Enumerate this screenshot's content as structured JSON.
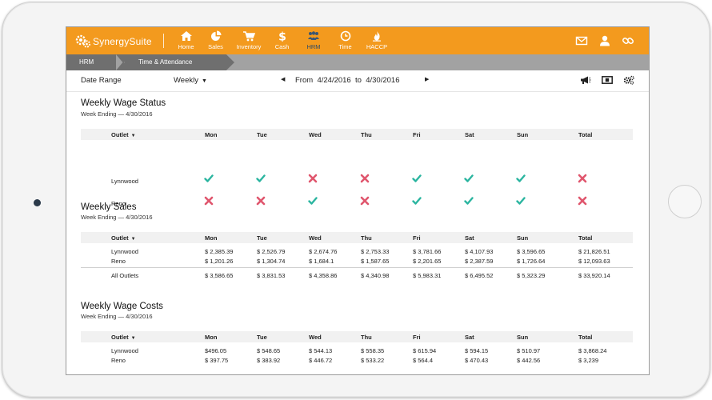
{
  "app": {
    "brand": "SynergySuite"
  },
  "nav": [
    {
      "label": "Home",
      "icon": "home-icon"
    },
    {
      "label": "Sales",
      "icon": "pie-chart-icon"
    },
    {
      "label": "Inventory",
      "icon": "cart-icon"
    },
    {
      "label": "Cash",
      "icon": "dollar-icon"
    },
    {
      "label": "HRM",
      "icon": "people-icon",
      "active": true
    },
    {
      "label": "Time",
      "icon": "clock-icon"
    },
    {
      "label": "HACCP",
      "icon": "flame-icon"
    }
  ],
  "header_icons": [
    "mail-icon",
    "user-icon",
    "link-icon"
  ],
  "breadcrumb": [
    "HRM",
    "Time & Attendance"
  ],
  "filter": {
    "label": "Date Range",
    "period": "Weekly",
    "from_label": "From",
    "from": "4/24/2016",
    "to_label": "to",
    "to": "4/30/2016"
  },
  "toolbar_icons": [
    "megaphone-icon",
    "money-icon",
    "settings-icon"
  ],
  "columns": [
    "Outlet",
    "Mon",
    "Tue",
    "Wed",
    "Thu",
    "Fri",
    "Sat",
    "Sun",
    "Total"
  ],
  "status": {
    "title": "Weekly Wage Status",
    "subtitle": "Week Ending — 4/30/2016",
    "rows": [
      {
        "outlet": "Lynnwood",
        "marks": [
          "check",
          "check",
          "cross",
          "cross",
          "check",
          "check",
          "check",
          "cross"
        ]
      },
      {
        "outlet": "Reno",
        "marks": [
          "cross",
          "cross",
          "check",
          "cross",
          "check",
          "check",
          "check",
          "cross"
        ]
      }
    ]
  },
  "sales": {
    "title": "Weekly Sales",
    "subtitle": "Week Ending — 4/30/2016",
    "rows": [
      {
        "outlet": "Lynnwood",
        "values": [
          "$ 2,385.39",
          "$ 2,526.79",
          "$ 2,674.76",
          "$ 2,753.33",
          "$ 3,781.66",
          "$ 4,107.93",
          "$ 3,596.65",
          "$ 21,826.51"
        ]
      },
      {
        "outlet": "Reno",
        "values": [
          "$ 1,201.26",
          "$ 1,304.74",
          "$ 1,684.1",
          "$ 1,587.65",
          "$ 2,201.65",
          "$ 2,387.59",
          "$ 1,726.64",
          "$ 12,093.63"
        ]
      }
    ],
    "total": {
      "outlet": "All Outlets",
      "values": [
        "$ 3,586.65",
        "$ 3,831.53",
        "$ 4,358.86",
        "$ 4,340.98",
        "$ 5,983.31",
        "$ 6,495.52",
        "$ 5,323.29",
        "$ 33,920.14"
      ]
    }
  },
  "costs": {
    "title": "Weekly Wage Costs",
    "subtitle": "Week Ending — 4/30/2016",
    "rows": [
      {
        "outlet": "Lynnwood",
        "values": [
          "$496.05",
          "$ 548.65",
          "$ 544.13",
          "$ 558.35",
          "$ 615.94",
          "$ 594.15",
          "$ 510.97",
          "$ 3,868.24"
        ]
      },
      {
        "outlet": "Reno",
        "values": [
          "$ 397.75",
          "$ 383.92",
          "$ 446.72",
          "$ 533.22",
          "$ 564.4",
          "$ 470.43",
          "$ 442.56",
          "$ 3,239"
        ]
      }
    ]
  },
  "colors": {
    "brand": "#f39a1e",
    "check": "#2bb5a0",
    "cross": "#e0566d",
    "breadcrumb": "#6f6f6f"
  }
}
